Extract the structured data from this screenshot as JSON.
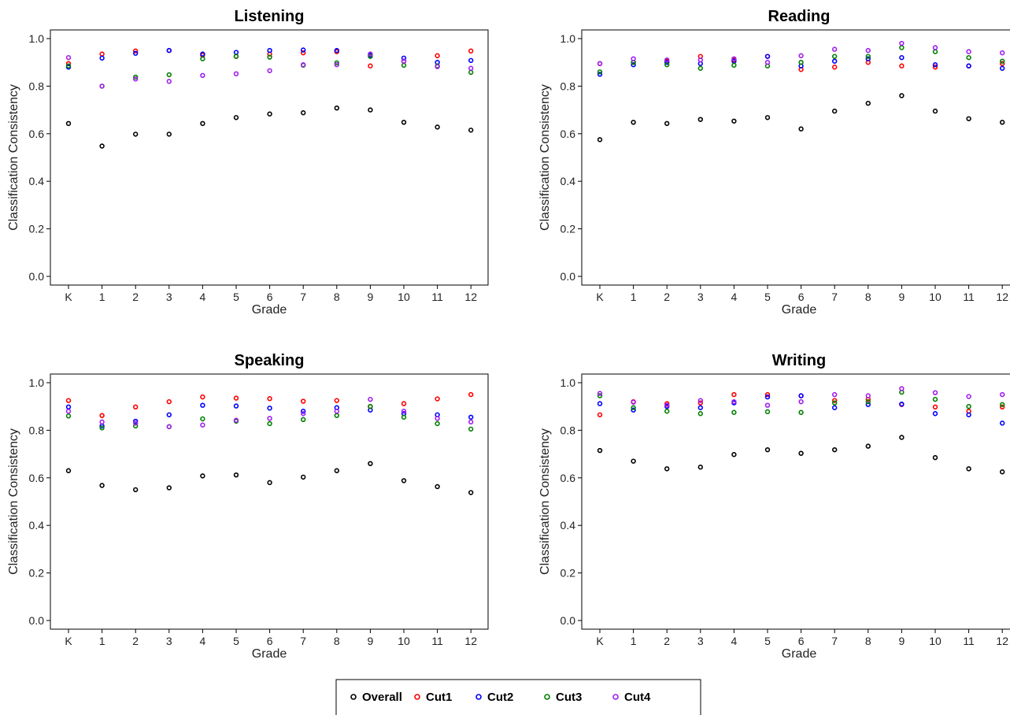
{
  "chart_data": [
    {
      "type": "scatter",
      "title": "Listening",
      "xlabel": "Grade",
      "ylabel": "Classification Consistency",
      "categories": [
        "K",
        "1",
        "2",
        "3",
        "4",
        "5",
        "6",
        "7",
        "8",
        "9",
        "10",
        "11",
        "12"
      ],
      "ylim": [
        0,
        1
      ],
      "yticks": [
        "0.0",
        "0.2",
        "0.4",
        "0.6",
        "0.8",
        "1.0"
      ],
      "series": [
        {
          "name": "Overall",
          "color": "#000000",
          "values": [
            0.643,
            0.548,
            0.598,
            0.598,
            0.643,
            0.668,
            0.683,
            0.688,
            0.708,
            0.7,
            0.648,
            0.628,
            0.615
          ]
        },
        {
          "name": "Cut1",
          "color": "#ff0000",
          "values": [
            0.895,
            0.935,
            0.948,
            0.95,
            0.93,
            0.925,
            0.935,
            0.94,
            0.945,
            0.885,
            0.905,
            0.928,
            0.948
          ]
        },
        {
          "name": "Cut2",
          "color": "#0000ff",
          "values": [
            0.88,
            0.918,
            0.938,
            0.95,
            0.935,
            0.942,
            0.95,
            0.952,
            0.95,
            0.93,
            0.918,
            0.9,
            0.908
          ]
        },
        {
          "name": "Cut3",
          "color": "#008000",
          "values": [
            0.885,
            0.8,
            0.838,
            0.848,
            0.915,
            0.925,
            0.922,
            0.888,
            0.898,
            0.925,
            0.888,
            0.885,
            0.858
          ]
        },
        {
          "name": "Cut4",
          "color": "#a020f0",
          "values": [
            0.92,
            0.8,
            0.83,
            0.82,
            0.845,
            0.852,
            0.865,
            0.89,
            0.89,
            0.935,
            0.905,
            0.882,
            0.875
          ]
        }
      ]
    },
    {
      "type": "scatter",
      "title": "Reading",
      "xlabel": "Grade",
      "ylabel": "Classification Consistency",
      "categories": [
        "K",
        "1",
        "2",
        "3",
        "4",
        "5",
        "6",
        "7",
        "8",
        "9",
        "10",
        "11",
        "12"
      ],
      "ylim": [
        0,
        1
      ],
      "yticks": [
        "0.0",
        "0.2",
        "0.4",
        "0.6",
        "0.8",
        "1.0"
      ],
      "series": [
        {
          "name": "Overall",
          "color": "#000000",
          "values": [
            0.575,
            0.648,
            0.643,
            0.66,
            0.653,
            0.668,
            0.62,
            0.695,
            0.728,
            0.76,
            0.695,
            0.663,
            0.648
          ]
        },
        {
          "name": "Cut1",
          "color": "#ff0000",
          "values": [
            0.895,
            0.9,
            0.905,
            0.925,
            0.91,
            0.925,
            0.87,
            0.88,
            0.9,
            0.885,
            0.88,
            0.885,
            0.895
          ]
        },
        {
          "name": "Cut2",
          "color": "#0000ff",
          "values": [
            0.85,
            0.89,
            0.9,
            0.895,
            0.905,
            0.925,
            0.885,
            0.905,
            0.915,
            0.92,
            0.89,
            0.885,
            0.875
          ]
        },
        {
          "name": "Cut3",
          "color": "#008000",
          "values": [
            0.86,
            0.9,
            0.89,
            0.875,
            0.888,
            0.885,
            0.9,
            0.925,
            0.925,
            0.962,
            0.945,
            0.92,
            0.905
          ]
        },
        {
          "name": "Cut4",
          "color": "#a020f0",
          "values": [
            0.895,
            0.915,
            0.91,
            0.91,
            0.915,
            0.9,
            0.928,
            0.955,
            0.95,
            0.98,
            0.962,
            0.945,
            0.94
          ]
        }
      ]
    },
    {
      "type": "scatter",
      "title": "Speaking",
      "xlabel": "Grade",
      "ylabel": "Classification Consistency",
      "categories": [
        "K",
        "1",
        "2",
        "3",
        "4",
        "5",
        "6",
        "7",
        "8",
        "9",
        "10",
        "11",
        "12"
      ],
      "ylim": [
        0,
        1
      ],
      "yticks": [
        "0.0",
        "0.2",
        "0.4",
        "0.6",
        "0.8",
        "1.0"
      ],
      "series": [
        {
          "name": "Overall",
          "color": "#000000",
          "values": [
            0.63,
            0.568,
            0.55,
            0.558,
            0.608,
            0.612,
            0.58,
            0.603,
            0.63,
            0.66,
            0.588,
            0.563,
            0.538
          ]
        },
        {
          "name": "Cut1",
          "color": "#ff0000",
          "values": [
            0.925,
            0.862,
            0.898,
            0.92,
            0.94,
            0.935,
            0.933,
            0.922,
            0.925,
            0.9,
            0.912,
            0.932,
            0.95
          ]
        },
        {
          "name": "Cut2",
          "color": "#0000ff",
          "values": [
            0.898,
            0.818,
            0.838,
            0.865,
            0.905,
            0.902,
            0.893,
            0.88,
            0.895,
            0.885,
            0.87,
            0.865,
            0.855
          ]
        },
        {
          "name": "Cut3",
          "color": "#008000",
          "values": [
            0.86,
            0.81,
            0.818,
            0.815,
            0.848,
            0.838,
            0.828,
            0.845,
            0.862,
            0.9,
            0.855,
            0.828,
            0.805
          ]
        },
        {
          "name": "Cut4",
          "color": "#a020f0",
          "values": [
            0.88,
            0.835,
            0.83,
            0.815,
            0.822,
            0.842,
            0.85,
            0.87,
            0.88,
            0.93,
            0.88,
            0.85,
            0.835
          ]
        }
      ]
    },
    {
      "type": "scatter",
      "title": "Writing",
      "xlabel": "Grade",
      "ylabel": "Classification Consistency",
      "categories": [
        "K",
        "1",
        "2",
        "3",
        "4",
        "5",
        "6",
        "7",
        "8",
        "9",
        "10",
        "11",
        "12"
      ],
      "ylim": [
        0,
        1
      ],
      "yticks": [
        "0.0",
        "0.2",
        "0.4",
        "0.6",
        "0.8",
        "1.0"
      ],
      "series": [
        {
          "name": "Overall",
          "color": "#000000",
          "values": [
            0.715,
            0.67,
            0.638,
            0.645,
            0.698,
            0.718,
            0.703,
            0.718,
            0.733,
            0.77,
            0.685,
            0.638,
            0.625
          ]
        },
        {
          "name": "Cut1",
          "color": "#ff0000",
          "values": [
            0.865,
            0.92,
            0.912,
            0.915,
            0.95,
            0.95,
            0.945,
            0.925,
            0.93,
            0.908,
            0.898,
            0.88,
            0.898
          ]
        },
        {
          "name": "Cut2",
          "color": "#0000ff",
          "values": [
            0.912,
            0.885,
            0.9,
            0.895,
            0.915,
            0.94,
            0.945,
            0.895,
            0.908,
            0.91,
            0.87,
            0.865,
            0.83
          ]
        },
        {
          "name": "Cut3",
          "color": "#008000",
          "values": [
            0.945,
            0.895,
            0.88,
            0.87,
            0.875,
            0.878,
            0.875,
            0.915,
            0.92,
            0.96,
            0.93,
            0.9,
            0.908
          ]
        },
        {
          "name": "Cut4",
          "color": "#a020f0",
          "values": [
            0.955,
            0.918,
            0.905,
            0.925,
            0.92,
            0.905,
            0.92,
            0.95,
            0.945,
            0.975,
            0.958,
            0.942,
            0.95
          ]
        }
      ]
    }
  ],
  "legend": {
    "position": "bottom-center",
    "items": [
      {
        "name": "Overall",
        "color": "#000000"
      },
      {
        "name": "Cut1",
        "color": "#ff0000"
      },
      {
        "name": "Cut2",
        "color": "#0000ff"
      },
      {
        "name": "Cut3",
        "color": "#008000"
      },
      {
        "name": "Cut4",
        "color": "#a020f0"
      }
    ]
  }
}
